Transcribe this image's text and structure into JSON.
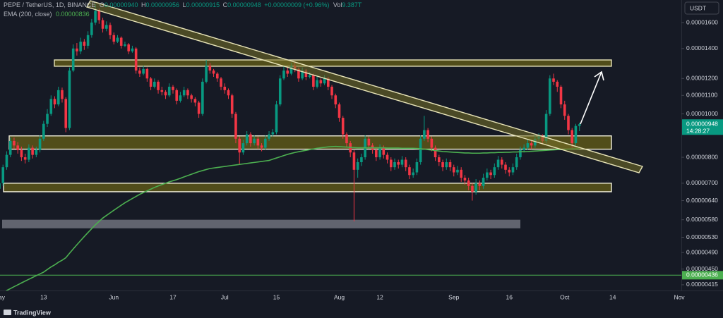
{
  "header": {
    "symbol": "PEPE / TetherUS, 1D, BINANCE",
    "ohlc": [
      {
        "label": "O",
        "value": "0.00000940"
      },
      {
        "label": "H",
        "value": "0.00000956"
      },
      {
        "label": "L",
        "value": "0.00000915"
      },
      {
        "label": "C",
        "value": "0.00000948"
      }
    ],
    "change": "+0.00000009 (+0.96%)",
    "volume": {
      "label": "Vol",
      "value": "9.387T"
    },
    "currency": "USDT",
    "countdown": "14:28:27",
    "brand": "TradingView"
  },
  "chart_data": {
    "type": "candlestick",
    "log_scale": true,
    "grid": false,
    "up_color": "#089981",
    "down_color": "#f23645",
    "ylim": [
      4.03e-06,
      1.797e-05
    ],
    "yticks": [
      {
        "value": 1.6e-05,
        "label": "0.00001600"
      },
      {
        "value": 1.4e-05,
        "label": "0.00001400"
      },
      {
        "value": 1.2e-05,
        "label": "0.00001200"
      },
      {
        "value": 1.1e-05,
        "label": "0.00001100"
      },
      {
        "value": 1e-05,
        "label": "0.00001000"
      },
      {
        "value": 8e-06,
        "label": "0.00000800"
      },
      {
        "value": 7e-06,
        "label": "0.00000700"
      },
      {
        "value": 6.4e-06,
        "label": "0.00000640"
      },
      {
        "value": 5.8e-06,
        "label": "0.00000580"
      },
      {
        "value": 5.3e-06,
        "label": "0.00000530"
      },
      {
        "value": 4.9e-06,
        "label": "0.00000490"
      },
      {
        "value": 4.5e-06,
        "label": "0.00000450"
      },
      {
        "value": 4.15e-06,
        "label": "0.00000415"
      }
    ],
    "categories": [
      "May",
      null,
      null,
      null,
      null,
      null,
      null,
      null,
      null,
      null,
      null,
      null,
      "13",
      null,
      null,
      null,
      null,
      null,
      null,
      null,
      null,
      null,
      null,
      null,
      null,
      null,
      null,
      null,
      null,
      null,
      null,
      "Jun",
      null,
      null,
      null,
      null,
      null,
      null,
      null,
      null,
      null,
      null,
      null,
      null,
      null,
      null,
      null,
      "17",
      null,
      null,
      null,
      null,
      null,
      null,
      null,
      null,
      null,
      null,
      null,
      null,
      null,
      "Jul",
      null,
      null,
      null,
      null,
      null,
      null,
      null,
      null,
      null,
      null,
      null,
      null,
      null,
      "15",
      null,
      null,
      null,
      null,
      null,
      null,
      null,
      null,
      null,
      null,
      null,
      null,
      null,
      null,
      null,
      null,
      "Aug",
      null,
      null,
      null,
      null,
      null,
      null,
      null,
      null,
      null,
      null,
      "12",
      null,
      null,
      null,
      null,
      null,
      null,
      null,
      null,
      null,
      null,
      null,
      null,
      null,
      null,
      null,
      null,
      null,
      null,
      null,
      "Sep",
      null,
      null,
      null,
      null,
      null,
      null,
      null,
      null,
      null,
      null,
      null,
      null,
      null,
      null,
      "16",
      null,
      null,
      null,
      null,
      null,
      null,
      null,
      null,
      null,
      null,
      null,
      null,
      null,
      null,
      "Oct",
      null,
      null,
      null,
      null,
      null,
      null,
      null,
      null,
      null,
      null,
      null,
      null,
      "14",
      null,
      null,
      null,
      null,
      null,
      null,
      null,
      null,
      null,
      null,
      null,
      null,
      null,
      null,
      null,
      null,
      null,
      "Nov"
    ],
    "open": [
      6.8e-06,
      7e-06,
      7.6e-06,
      8.1e-06,
      8.7e-06,
      8.5e-06,
      8.3e-06,
      8e-06,
      7.9e-06,
      8.4e-06,
      8.1e-06,
      8.3e-06,
      8.8e-06,
      9.5e-06,
      1e-05,
      1.08e-05,
      1.05e-05,
      1.13e-05,
      1.08e-05,
      9.3e-06,
      1.25e-05,
      1.4e-05,
      1.38e-05,
      1.45e-05,
      1.42e-05,
      1.5e-05,
      1.6e-05,
      1.7e-05,
      1.62e-05,
      1.55e-05,
      1.58e-05,
      1.5e-05,
      1.45e-05,
      1.48e-05,
      1.42e-05,
      1.43e-05,
      1.38e-05,
      1.4e-05,
      1.25e-05,
      1.23e-05,
      1.26e-05,
      1.2e-05,
      1.15e-05,
      1.18e-05,
      1.13e-05,
      1.12e-05,
      1.1e-05,
      1.15e-05,
      1.13e-05,
      1.07e-05,
      1.1e-05,
      1.13e-05,
      1.1e-05,
      1.08e-05,
      1.06e-05,
      1e-05,
      1.18e-05,
      1.28e-05,
      1.25e-05,
      1.23e-05,
      1.2e-05,
      1.15e-05,
      1.13e-05,
      1.1e-05,
      1e-05,
      8.8e-06,
      8.2e-06,
      8.6e-06,
      9e-06,
      8.6e-06,
      8.8e-06,
      8.5e-06,
      8.4e-06,
      8.8e-06,
      9e-06,
      9.1e-06,
      1.05e-05,
      1.2e-05,
      1.25e-05,
      1.23e-05,
      1.28e-05,
      1.26e-05,
      1.2e-05,
      1.25e-05,
      1.21e-05,
      1.22e-05,
      1.15e-05,
      1.19e-05,
      1.17e-05,
      1.2e-05,
      1.15e-05,
      1.1e-05,
      1.05e-05,
      9.8e-06,
      9e-06,
      8.6e-06,
      8.2e-06,
      7.5e-06,
      7.8e-06,
      8e-06,
      8.8e-06,
      8.5e-06,
      8.3e-06,
      8e-06,
      8.4e-06,
      8.1e-06,
      7.9e-06,
      7.6e-06,
      7.8e-06,
      7.7e-06,
      7.9e-06,
      7.6e-06,
      7.3e-06,
      7.4e-06,
      7.8e-06,
      8.8e-06,
      9.2e-06,
      8.8e-06,
      8.4e-06,
      8e-06,
      7.8e-06,
      7.6e-06,
      7.8e-06,
      7.6e-06,
      7.4e-06,
      7.5e-06,
      7.2e-06,
      7.1e-06,
      6.9e-06,
      6.7e-06,
      7e-06,
      6.9e-06,
      7.2e-06,
      7.4e-06,
      7.3e-06,
      7.6e-06,
      7.9e-06,
      7.7e-06,
      7.5e-06,
      7.4e-06,
      7.6e-06,
      8e-06,
      8.3e-06,
      8.4e-06,
      8.6e-06,
      8.5e-06,
      8.8e-06,
      8.9e-06,
      8.7e-06,
      1e-05,
      1.2e-05,
      1.18e-05,
      1.15e-05,
      1.05e-05,
      9.9e-06,
      9.2e-06,
      8.6e-06,
      9.4e-06,
      null,
      null,
      null,
      null,
      null,
      null,
      null,
      null,
      null,
      null,
      null,
      null,
      null,
      null,
      null,
      null,
      null,
      null,
      null,
      null,
      null,
      null,
      null,
      null,
      null,
      null,
      null
    ],
    "high": [
      7.15e-06,
      7.7e-06,
      8.25e-06,
      8.85e-06,
      8.85e-06,
      8.65e-06,
      8.45e-06,
      8.15e-06,
      8.55e-06,
      8.5e-06,
      8.45e-06,
      8.95e-06,
      9.65e-06,
      1.025e-05,
      1.1e-05,
      1.095e-05,
      1.15e-05,
      1.145e-05,
      1.09e-05,
      1.27e-05,
      1.43e-05,
      1.44e-05,
      1.48e-05,
      1.47e-05,
      1.53e-05,
      1.63e-05,
      1.76e-05,
      1.72e-05,
      1.64e-05,
      1.61e-05,
      1.6e-05,
      1.52e-05,
      1.5e-05,
      1.49e-05,
      1.45e-05,
      1.44e-05,
      1.42e-05,
      1.41e-05,
      1.27e-05,
      1.28e-05,
      1.27e-05,
      1.21e-05,
      1.2e-05,
      1.19e-05,
      1.15e-05,
      1.13e-05,
      1.17e-05,
      1.16e-05,
      1.14e-05,
      1.12e-05,
      1.15e-05,
      1.14e-05,
      1.11e-05,
      1.09e-05,
      1.07e-05,
      1.2e-05,
      1.32e-05,
      1.3e-05,
      1.26e-05,
      1.24e-05,
      1.21e-05,
      1.17e-05,
      1.14e-05,
      1.11e-05,
      1.01e-05,
      8.9e-06,
      8.75e-06,
      9.15e-06,
      9.1e-06,
      8.95e-06,
      8.9e-06,
      8.6e-06,
      8.95e-06,
      9.15e-06,
      9.25e-06,
      1.07e-05,
      1.22e-05,
      1.28e-05,
      1.27e-05,
      1.3e-05,
      1.3e-05,
      1.27e-05,
      1.27e-05,
      1.26e-05,
      1.24e-05,
      1.23e-05,
      1.21e-05,
      1.2e-05,
      1.22e-05,
      1.21e-05,
      1.16e-05,
      1.11e-05,
      1.06e-05,
      9.9e-06,
      9.1e-06,
      8.7e-06,
      8.3e-06,
      7.95e-06,
      8.15e-06,
      8.95e-06,
      8.9e-06,
      8.6e-06,
      8.4e-06,
      8.55e-06,
      8.5e-06,
      8.2e-06,
      8e-06,
      7.95e-06,
      7.9e-06,
      8.05e-06,
      8e-06,
      7.7e-06,
      7.55e-06,
      7.95e-06,
      8.95e-06,
      9.9e-06,
      9.3e-06,
      8.9e-06,
      8.5e-06,
      8.1e-06,
      7.9e-06,
      7.95e-06,
      7.9e-06,
      7.7e-06,
      7.65e-06,
      7.6e-06,
      7.3e-06,
      7.2e-06,
      7e-06,
      7.15e-06,
      7.1e-06,
      7.35e-06,
      7.55e-06,
      7.5e-06,
      7.75e-06,
      8.05e-06,
      8e-06,
      7.8e-06,
      7.6e-06,
      7.75e-06,
      8.15e-06,
      8.45e-06,
      8.55e-06,
      8.75e-06,
      8.7e-06,
      8.95e-06,
      9.05e-06,
      9e-06,
      1.02e-05,
      1.22e-05,
      1.23e-05,
      1.19e-05,
      1.16e-05,
      1.07e-05,
      1e-05,
      9.3e-06,
      9.5e-06,
      9.56e-06,
      null,
      null,
      null,
      null,
      null,
      null,
      null,
      null,
      null,
      null,
      null,
      null,
      null,
      null,
      null,
      null,
      null,
      null,
      null,
      null,
      null,
      null,
      null,
      null,
      null,
      null,
      null
    ],
    "low": [
      6.65e-06,
      6.9e-06,
      7.5e-06,
      8e-06,
      8.35e-06,
      8.15e-06,
      7.85e-06,
      7.75e-06,
      7.8e-06,
      7.95e-06,
      8e-06,
      8.2e-06,
      8.7e-06,
      9.35e-06,
      9.9e-06,
      1.03e-05,
      1.04e-05,
      1.06e-05,
      9.1e-06,
      9.2e-06,
      1.24e-05,
      1.35e-05,
      1.36e-05,
      1.39e-05,
      1.4e-05,
      1.48e-05,
      1.58e-05,
      1.59e-05,
      1.52e-05,
      1.53e-05,
      1.47e-05,
      1.43e-05,
      1.44e-05,
      1.4e-05,
      1.41e-05,
      1.36e-05,
      1.37e-05,
      1.23e-05,
      1.21e-05,
      1.22e-05,
      1.18e-05,
      1.13e-05,
      1.14e-05,
      1.11e-05,
      1.1e-05,
      1.08e-05,
      1.09e-05,
      1.11e-05,
      1.05e-05,
      1.06e-05,
      1.09e-05,
      1.08e-05,
      1.06e-05,
      1.04e-05,
      9.8e-06,
      9.9e-06,
      1.17e-05,
      1.23e-05,
      1.21e-05,
      1.18e-05,
      1.13e-05,
      1.11e-05,
      1.08e-05,
      9.8e-06,
      8.6e-06,
      7.7e-06,
      8.1e-06,
      8.5e-06,
      8.45e-06,
      8.5e-06,
      8.35e-06,
      8.25e-06,
      8.3e-06,
      8.7e-06,
      8.9e-06,
      9e-06,
      1.04e-05,
      1.19e-05,
      1.21e-05,
      1.22e-05,
      1.24e-05,
      1.18e-05,
      1.19e-05,
      1.19e-05,
      1.2e-05,
      1.13e-05,
      1.14e-05,
      1.15e-05,
      1.16e-05,
      1.13e-05,
      1.08e-05,
      1.03e-05,
      9.6e-06,
      8.8e-06,
      8.45e-06,
      8e-06,
      5.75e-06,
      7.2e-06,
      7.65e-06,
      7.9e-06,
      8.35e-06,
      8.15e-06,
      7.85e-06,
      7.9e-06,
      7.95e-06,
      7.75e-06,
      7.45e-06,
      7.5e-06,
      7.55e-06,
      7.6e-06,
      7.45e-06,
      7.15e-06,
      7.2e-06,
      7.3e-06,
      7.7e-06,
      8.7e-06,
      8.65e-06,
      8.25e-06,
      7.85e-06,
      7.65e-06,
      7.45e-06,
      7.5e-06,
      7.45e-06,
      7.25e-06,
      7.3e-06,
      7.05e-06,
      6.95e-06,
      6.75e-06,
      6.4e-06,
      6.6e-06,
      6.75e-06,
      6.8e-06,
      7.1e-06,
      7.15e-06,
      7.2e-06,
      7.5e-06,
      7.55e-06,
      7.35e-06,
      7.25e-06,
      7.3e-06,
      7.5e-06,
      7.9e-06,
      8.2e-06,
      8.3e-06,
      8.35e-06,
      8.4e-06,
      8.7e-06,
      8.55e-06,
      8.6e-06,
      9.9e-06,
      1.16e-05,
      1.12e-05,
      1.03e-05,
      9.7e-06,
      9e-06,
      8.4e-06,
      8.5e-06,
      9.15e-06,
      null,
      null,
      null,
      null,
      null,
      null,
      null,
      null,
      null,
      null,
      null,
      null,
      null,
      null,
      null,
      null,
      null,
      null,
      null,
      null,
      null,
      null,
      null,
      null,
      null,
      null,
      null
    ],
    "close": [
      7e-06,
      7.6e-06,
      8.1e-06,
      8.7e-06,
      8.5e-06,
      8.3e-06,
      8e-06,
      7.9e-06,
      8.4e-06,
      8.1e-06,
      8.3e-06,
      8.8e-06,
      9.5e-06,
      1e-05,
      1.08e-05,
      1.05e-05,
      1.13e-05,
      1.08e-05,
      9.3e-06,
      1.25e-05,
      1.4e-05,
      1.38e-05,
      1.45e-05,
      1.42e-05,
      1.5e-05,
      1.6e-05,
      1.7e-05,
      1.62e-05,
      1.55e-05,
      1.58e-05,
      1.5e-05,
      1.45e-05,
      1.48e-05,
      1.42e-05,
      1.43e-05,
      1.38e-05,
      1.4e-05,
      1.25e-05,
      1.23e-05,
      1.26e-05,
      1.2e-05,
      1.15e-05,
      1.18e-05,
      1.13e-05,
      1.12e-05,
      1.1e-05,
      1.15e-05,
      1.13e-05,
      1.07e-05,
      1.1e-05,
      1.13e-05,
      1.1e-05,
      1.08e-05,
      1.06e-05,
      1e-05,
      1.18e-05,
      1.28e-05,
      1.25e-05,
      1.23e-05,
      1.2e-05,
      1.15e-05,
      1.13e-05,
      1.1e-05,
      1e-05,
      8.8e-06,
      8.2e-06,
      8.6e-06,
      9e-06,
      8.6e-06,
      8.8e-06,
      8.5e-06,
      8.4e-06,
      8.8e-06,
      9e-06,
      9.1e-06,
      1.05e-05,
      1.2e-05,
      1.25e-05,
      1.23e-05,
      1.28e-05,
      1.26e-05,
      1.2e-05,
      1.25e-05,
      1.21e-05,
      1.22e-05,
      1.15e-05,
      1.19e-05,
      1.17e-05,
      1.2e-05,
      1.15e-05,
      1.1e-05,
      1.05e-05,
      9.8e-06,
      9e-06,
      8.6e-06,
      8.2e-06,
      7.5e-06,
      7.8e-06,
      8e-06,
      8.8e-06,
      8.5e-06,
      8.3e-06,
      8e-06,
      8.4e-06,
      8.1e-06,
      7.9e-06,
      7.6e-06,
      7.8e-06,
      7.7e-06,
      7.9e-06,
      7.6e-06,
      7.3e-06,
      7.4e-06,
      7.8e-06,
      8.8e-06,
      9.2e-06,
      8.8e-06,
      8.4e-06,
      8e-06,
      7.8e-06,
      7.6e-06,
      7.8e-06,
      7.6e-06,
      7.4e-06,
      7.5e-06,
      7.2e-06,
      7.1e-06,
      6.9e-06,
      6.7e-06,
      7e-06,
      6.9e-06,
      7.2e-06,
      7.4e-06,
      7.3e-06,
      7.6e-06,
      7.9e-06,
      7.7e-06,
      7.5e-06,
      7.4e-06,
      7.6e-06,
      8e-06,
      8.3e-06,
      8.4e-06,
      8.6e-06,
      8.5e-06,
      8.8e-06,
      8.9e-06,
      8.7e-06,
      1e-05,
      1.2e-05,
      1.18e-05,
      1.15e-05,
      1.05e-05,
      9.9e-06,
      9.2e-06,
      8.6e-06,
      9.4e-06,
      9.48e-06,
      null,
      null,
      null,
      null,
      null,
      null,
      null,
      null,
      null,
      null,
      null,
      null,
      null,
      null,
      null,
      null,
      null,
      null,
      null,
      null,
      null,
      null,
      null,
      null,
      null,
      null,
      null
    ],
    "ema": {
      "name": "EMA (200, close)",
      "color": "#4caf50",
      "values": [
        3.95e-06,
        3.99e-06,
        4.03e-06,
        4.07e-06,
        4.11e-06,
        4.15e-06,
        4.19e-06,
        4.23e-06,
        4.27e-06,
        4.31e-06,
        4.35e-06,
        4.39e-06,
        4.43e-06,
        4.49e-06,
        4.55e-06,
        4.6e-06,
        4.66e-06,
        4.71e-06,
        4.77e-06,
        4.88e-06,
        4.99e-06,
        5.1e-06,
        5.21e-06,
        5.32e-06,
        5.43e-06,
        5.54e-06,
        5.65e-06,
        5.75e-06,
        5.85e-06,
        5.93e-06,
        6.01e-06,
        6.09e-06,
        6.17e-06,
        6.25e-06,
        6.33e-06,
        6.4e-06,
        6.47e-06,
        6.54e-06,
        6.61e-06,
        6.67e-06,
        6.73e-06,
        6.79e-06,
        6.85e-06,
        6.9e-06,
        6.95e-06,
        7e-06,
        7.05e-06,
        7.09e-06,
        7.13e-06,
        7.18e-06,
        7.23e-06,
        7.28e-06,
        7.33e-06,
        7.38e-06,
        7.43e-06,
        7.47e-06,
        7.51e-06,
        7.55e-06,
        7.57e-06,
        7.59e-06,
        7.61e-06,
        7.63e-06,
        7.65e-06,
        7.67e-06,
        7.69e-06,
        7.71e-06,
        7.73e-06,
        7.75e-06,
        7.77e-06,
        7.79e-06,
        7.81e-06,
        7.83e-06,
        7.85e-06,
        7.87e-06,
        7.92e-06,
        7.97e-06,
        8.02e-06,
        8.07e-06,
        8.12e-06,
        8.16e-06,
        8.2e-06,
        8.23e-06,
        8.26e-06,
        8.29e-06,
        8.32e-06,
        8.35e-06,
        8.38e-06,
        8.4e-06,
        8.42e-06,
        8.44e-06,
        8.45e-06,
        8.46e-06,
        8.45e-06,
        8.44e-06,
        8.43e-06,
        8.42e-06,
        8.41e-06,
        8.4e-06,
        8.4e-06,
        8.4e-06,
        8.4e-06,
        8.4e-06,
        8.4e-06,
        8.4e-06,
        8.4e-06,
        8.39e-06,
        8.39e-06,
        8.39e-06,
        8.39e-06,
        8.38e-06,
        8.38e-06,
        8.38e-06,
        8.38e-06,
        8.37e-06,
        8.36e-06,
        8.34e-06,
        8.32e-06,
        8.3e-06,
        8.28e-06,
        8.26e-06,
        8.24e-06,
        8.23e-06,
        8.22e-06,
        8.21e-06,
        8.2e-06,
        8.19e-06,
        8.18e-06,
        8.18e-06,
        8.17e-06,
        8.17e-06,
        8.17e-06,
        8.18e-06,
        8.18e-06,
        8.19e-06,
        8.19e-06,
        8.2e-06,
        8.2e-06,
        8.21e-06,
        8.21e-06,
        8.22e-06,
        8.22e-06,
        8.23e-06,
        8.23e-06,
        8.24e-06,
        8.25e-06,
        8.26e-06,
        8.27e-06,
        8.28e-06,
        8.29e-06,
        8.3e-06,
        8.31e-06,
        8.32e-06,
        8.32e-06,
        8.33e-06,
        8.34e-06,
        8.35e-06,
        8.35e-06,
        8.36e-06,
        null,
        null,
        null,
        null,
        null,
        null,
        null,
        null,
        null,
        null,
        null,
        null,
        null,
        null,
        null,
        null,
        null,
        null,
        null,
        null,
        null,
        null,
        null,
        null,
        null,
        null,
        null
      ]
    },
    "level": {
      "value": 4.36e-06,
      "color": "#4caf50"
    },
    "zones": [
      {
        "low": 1.278e-05,
        "high": 1.32e-05,
        "color": "#5c5719",
        "border": "#e8e4b8"
      },
      {
        "low": 8.34e-06,
        "high": 8.93e-06,
        "color": "#5c5719",
        "border": "#f2f0dc"
      },
      {
        "low": 6.7e-06,
        "high": 7e-06,
        "color": "#5c5719",
        "border": "#f2f0dc"
      },
      {
        "low": 5.55e-06,
        "high": 5.8e-06,
        "color": "#6f727c",
        "border": "none"
      }
    ]
  }
}
